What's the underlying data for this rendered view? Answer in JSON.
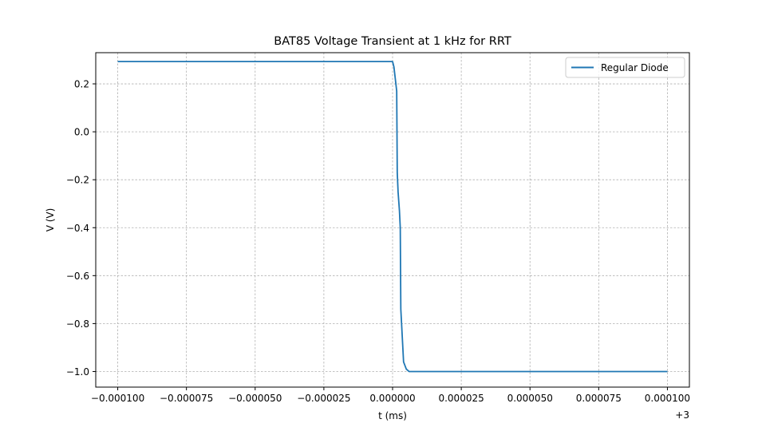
{
  "chart_data": {
    "type": "line",
    "title": "BAT85 Voltage Transient at 1 kHz for RRT",
    "xlabel": "t (ms)",
    "ylabel": "V (V)",
    "x_offset_label": "+3",
    "xlim": [
      -0.000108,
      0.000108
    ],
    "ylim": [
      -1.065,
      0.33
    ],
    "xticks": [
      -0.0001,
      -7.5e-05,
      -5e-05,
      -2.5e-05,
      0.0,
      2.5e-05,
      5e-05,
      7.5e-05,
      0.0001
    ],
    "xtick_labels": [
      "−0.000100",
      "−0.000075",
      "−0.000050",
      "−0.000025",
      "0.000000",
      "0.000025",
      "0.000050",
      "0.000075",
      "0.000100"
    ],
    "yticks": [
      0.2,
      0.0,
      -0.2,
      -0.4,
      -0.6,
      -0.8,
      -1.0
    ],
    "ytick_labels": [
      "0.2",
      "0.0",
      "−0.2",
      "−0.4",
      "−0.6",
      "−0.8",
      "−1.0"
    ],
    "grid": true,
    "legend_position": "top-right",
    "colors": {
      "series": "#1f77b4",
      "grid": "#b0b0b0",
      "axes": "#000000"
    },
    "series": [
      {
        "name": "Regular Diode",
        "x": [
          -0.0001,
          -5e-05,
          0.0,
          5e-07,
          1.5e-06,
          1.7e-06,
          2e-06,
          2.5e-06,
          2.8e-06,
          3e-06,
          3.5e-06,
          4e-06,
          5e-06,
          6e-06,
          8e-06,
          5e-05,
          0.0001
        ],
        "y": [
          0.293,
          0.293,
          0.293,
          0.27,
          0.17,
          -0.17,
          -0.25,
          -0.33,
          -0.4,
          -0.74,
          -0.85,
          -0.96,
          -0.99,
          -1.0,
          -1.0,
          -1.0,
          -1.0
        ]
      }
    ]
  }
}
